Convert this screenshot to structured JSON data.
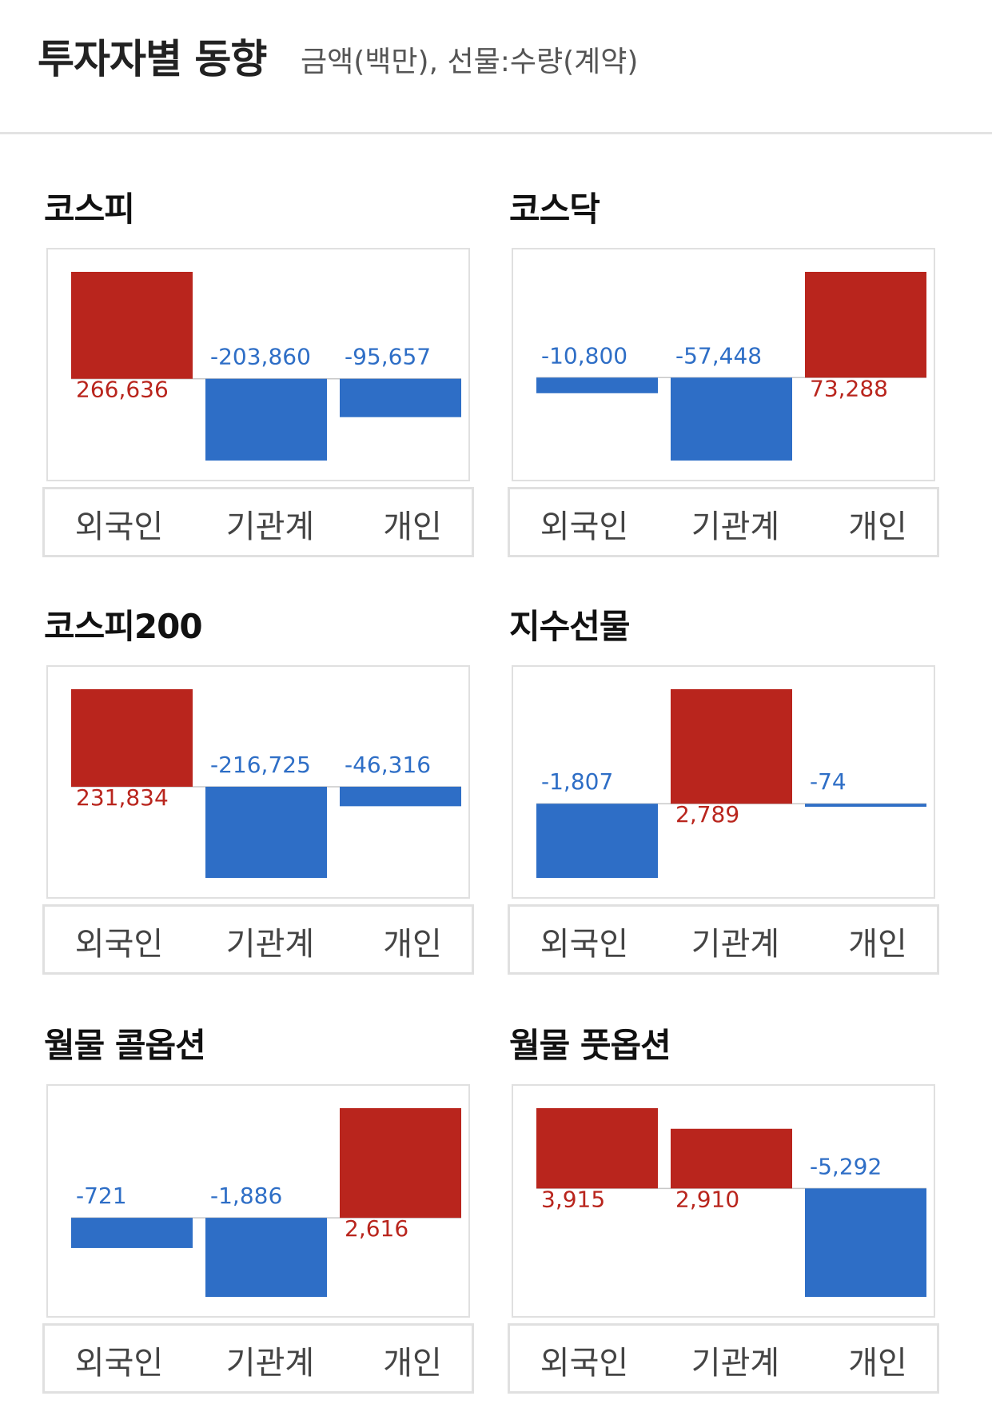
{
  "header": {
    "title": "투자자별 동향",
    "subtitle": "금액(백만), 선물:수량(계약)"
  },
  "colors": {
    "positive": "#b9251d",
    "negative": "#2e6ec6",
    "baseline": "#c8c8c8"
  },
  "chart_data": [
    {
      "type": "bar",
      "title": "코스피",
      "categories": [
        "외국인",
        "기관계",
        "개인"
      ],
      "values": [
        266636,
        -203860,
        -95657
      ],
      "value_labels": [
        "266,636",
        "-203,860",
        "-95,657"
      ]
    },
    {
      "type": "bar",
      "title": "코스닥",
      "categories": [
        "외국인",
        "기관계",
        "개인"
      ],
      "values": [
        -10800,
        -57448,
        73288
      ],
      "value_labels": [
        "-10,800",
        "-57,448",
        "73,288"
      ]
    },
    {
      "type": "bar",
      "title": "코스피200",
      "categories": [
        "외국인",
        "기관계",
        "개인"
      ],
      "values": [
        231834,
        -216725,
        -46316
      ],
      "value_labels": [
        "231,834",
        "-216,725",
        "-46,316"
      ]
    },
    {
      "type": "bar",
      "title": "지수선물",
      "categories": [
        "외국인",
        "기관계",
        "개인"
      ],
      "values": [
        -1807,
        2789,
        -74
      ],
      "value_labels": [
        "-1,807",
        "2,789",
        "-74"
      ]
    },
    {
      "type": "bar",
      "title": "월물 콜옵션",
      "categories": [
        "외국인",
        "기관계",
        "개인"
      ],
      "values": [
        -721,
        -1886,
        2616
      ],
      "value_labels": [
        "-721",
        "-1,886",
        "2,616"
      ]
    },
    {
      "type": "bar",
      "title": "월물 풋옵션",
      "categories": [
        "외국인",
        "기관계",
        "개인"
      ],
      "values": [
        3915,
        2910,
        -5292
      ],
      "value_labels": [
        "3,915",
        "2,910",
        "-5,292"
      ]
    }
  ]
}
